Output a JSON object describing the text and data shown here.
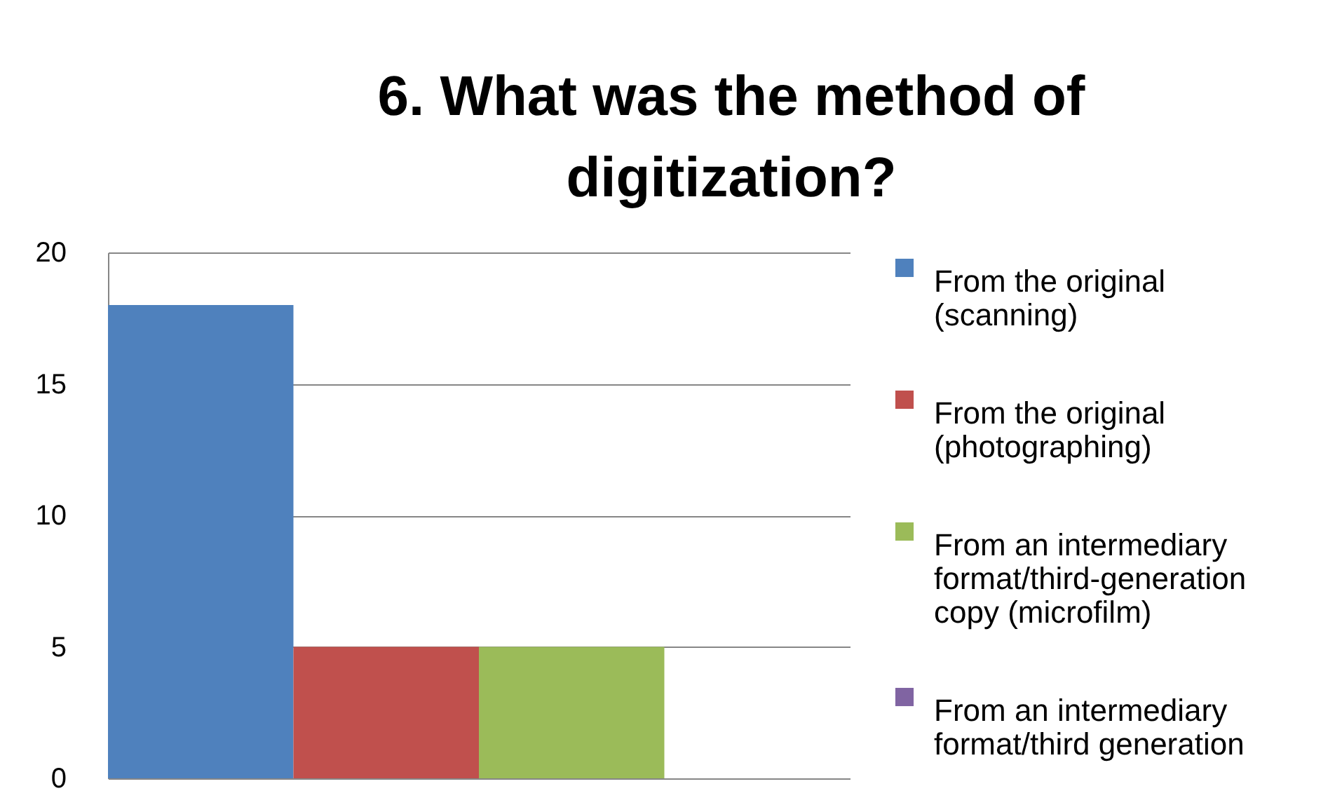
{
  "chart_data": {
    "type": "bar",
    "title": "6. What was the method of digitization?",
    "categories": [
      null
    ],
    "series": [
      {
        "name": "From the original (scanning)",
        "color": "#4f81bd",
        "values": [
          18
        ]
      },
      {
        "name": "From the original (photographing)",
        "color": "#c0504d",
        "values": [
          5
        ]
      },
      {
        "name": "From an intermediary format/third-generation copy (microfilm)",
        "color": "#9bbb59",
        "values": [
          5
        ]
      },
      {
        "name": "From an intermediary format/third generation",
        "color": "#8064a2",
        "values": [
          0
        ]
      }
    ],
    "ylim": [
      0,
      20
    ],
    "yticks": [
      0,
      5,
      10,
      15,
      20
    ],
    "grid": "y",
    "legend": "right"
  }
}
